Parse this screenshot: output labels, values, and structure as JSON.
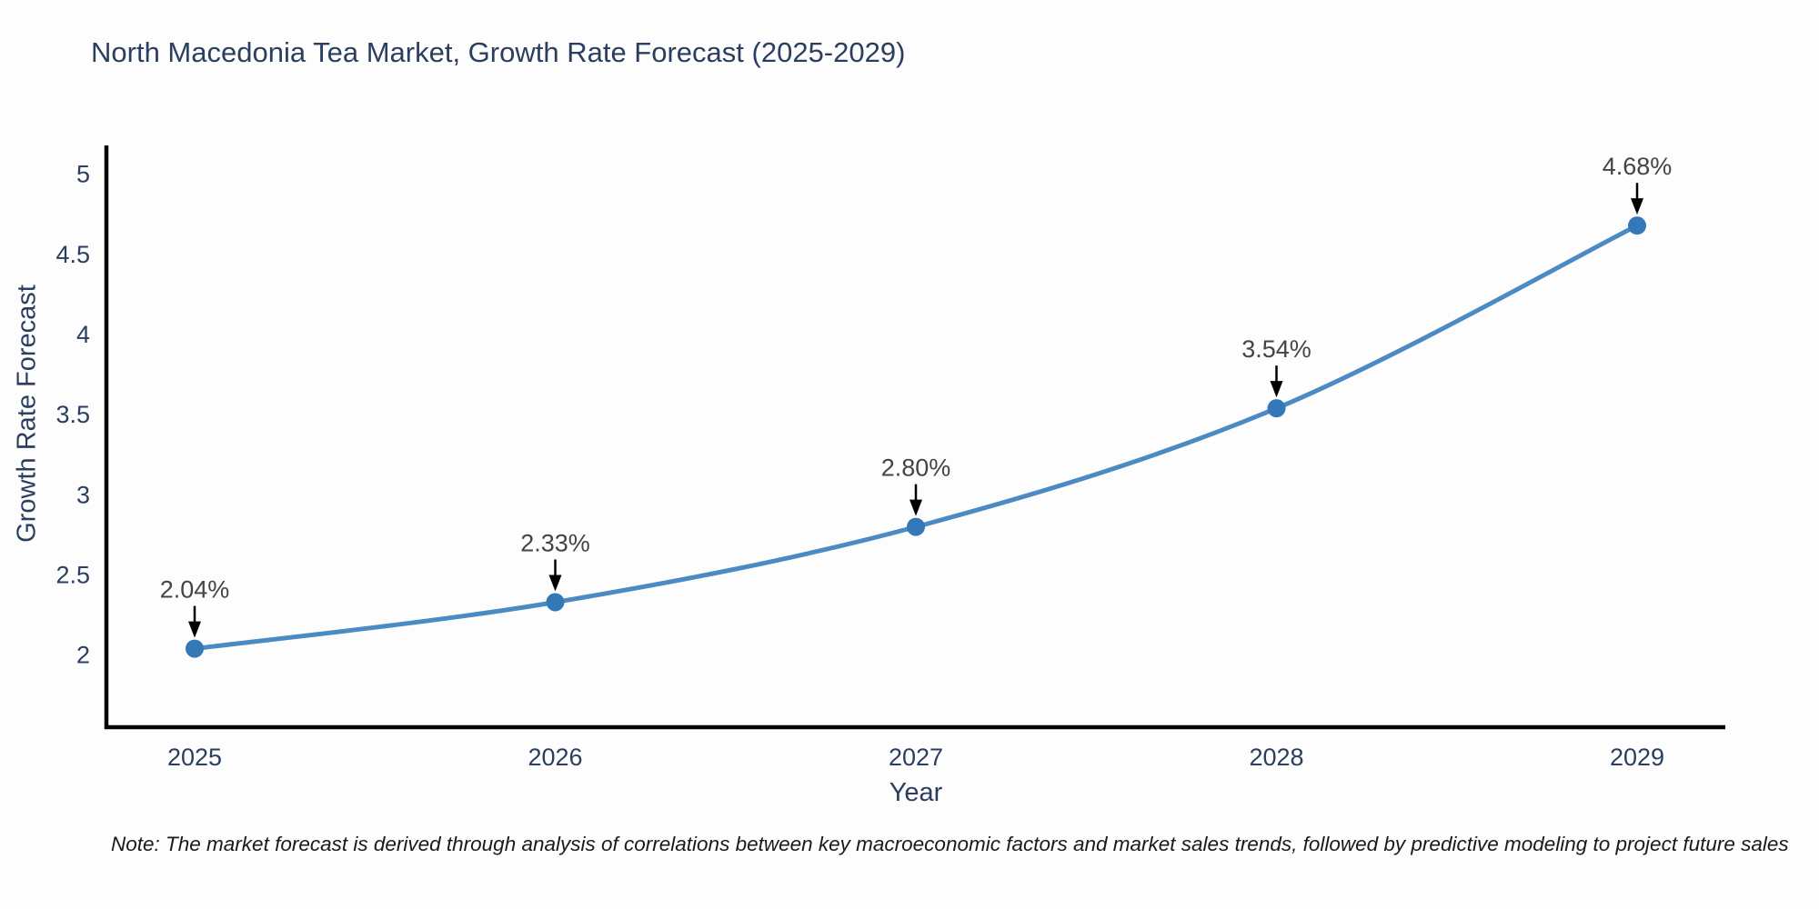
{
  "title": "North Macedonia Tea Market, Growth Rate Forecast (2025-2029)",
  "note": "Note: The market forecast is derived through analysis of correlations between key macroeconomic factors and market sales trends, followed by predictive modeling to project future sales",
  "chart_data": {
    "type": "line",
    "title": "North Macedonia Tea Market, Growth Rate Forecast (2025-2029)",
    "xlabel": "Year",
    "ylabel": "Growth Rate Forecast",
    "categories": [
      "2025",
      "2026",
      "2027",
      "2028",
      "2029"
    ],
    "series": [
      {
        "name": "Growth Rate Forecast",
        "values": [
          2.04,
          2.33,
          2.8,
          3.54,
          4.68
        ],
        "point_labels": [
          "2.04%",
          "2.33%",
          "2.80%",
          "3.54%",
          "4.68%"
        ]
      }
    ],
    "y_ticks": [
      2,
      2.5,
      3,
      3.5,
      4,
      4.5,
      5
    ],
    "ylim": [
      1.55,
      5.18
    ],
    "grid": false,
    "legend_position": "none",
    "line_shape": "spline",
    "annotations": "value labels with down arrows above each point",
    "colors": {
      "line": "#4b8ac2",
      "marker": "#3478b8",
      "axis": "#000000",
      "tick_text": "#2a3f5f",
      "annotation_text": "#444444",
      "arrow": "#000000"
    }
  }
}
